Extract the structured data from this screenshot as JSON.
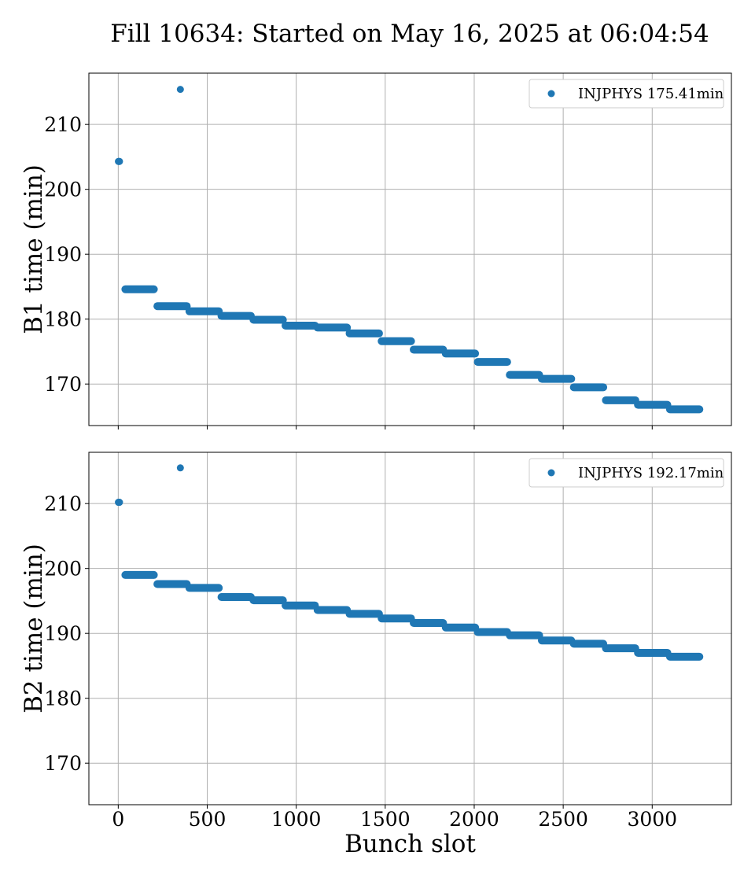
{
  "title": "Fill 10634: Started on May 16, 2025 at 06:04:54",
  "colors": {
    "series": "#1f77b4",
    "grid": "#b0b0b0"
  },
  "chart_data": [
    {
      "type": "scatter",
      "ylabel": "B1 time (min)",
      "xlabel": "",
      "xlim": [
        -165,
        3445
      ],
      "ylim": [
        163.6,
        217.9
      ],
      "xticks": [
        0,
        500,
        1000,
        1500,
        2000,
        2500,
        3000
      ],
      "yticks": [
        170,
        180,
        190,
        200,
        210
      ],
      "show_xticklabels": false,
      "grid": true,
      "legend_position": "top-right",
      "series": [
        {
          "name": "INJPHYS 175.41min",
          "points": [
            [
              1,
              204.3
            ],
            [
              3,
              204.3
            ],
            [
              5,
              204.3
            ],
            [
              7,
              204.3
            ],
            [
              349,
              215.4
            ]
          ],
          "steps": [
            {
              "x0": 40,
              "x1": 200,
              "y": 184.6
            },
            {
              "x0": 220,
              "x1": 385,
              "y": 182.0
            },
            {
              "x0": 400,
              "x1": 565,
              "y": 181.2
            },
            {
              "x0": 580,
              "x1": 745,
              "y": 180.5
            },
            {
              "x0": 760,
              "x1": 925,
              "y": 179.9
            },
            {
              "x0": 940,
              "x1": 1105,
              "y": 179.0
            },
            {
              "x0": 1120,
              "x1": 1285,
              "y": 178.7
            },
            {
              "x0": 1300,
              "x1": 1465,
              "y": 177.8
            },
            {
              "x0": 1480,
              "x1": 1645,
              "y": 176.6
            },
            {
              "x0": 1660,
              "x1": 1825,
              "y": 175.3
            },
            {
              "x0": 1840,
              "x1": 2005,
              "y": 174.7
            },
            {
              "x0": 2020,
              "x1": 2185,
              "y": 173.4
            },
            {
              "x0": 2200,
              "x1": 2365,
              "y": 171.4
            },
            {
              "x0": 2380,
              "x1": 2545,
              "y": 170.8
            },
            {
              "x0": 2560,
              "x1": 2725,
              "y": 169.5
            },
            {
              "x0": 2740,
              "x1": 2905,
              "y": 167.5
            },
            {
              "x0": 2920,
              "x1": 3085,
              "y": 166.8
            },
            {
              "x0": 3100,
              "x1": 3265,
              "y": 166.1
            }
          ]
        }
      ]
    },
    {
      "type": "scatter",
      "ylabel": "B2 time (min)",
      "xlabel": "Bunch slot",
      "xlim": [
        -165,
        3445
      ],
      "ylim": [
        163.6,
        217.9
      ],
      "xticks": [
        0,
        500,
        1000,
        1500,
        2000,
        2500,
        3000
      ],
      "xticklabels": [
        "0",
        "500",
        "1000",
        "1500",
        "2000",
        "2500",
        "3000"
      ],
      "yticks": [
        170,
        180,
        190,
        200,
        210
      ],
      "show_xticklabels": true,
      "grid": true,
      "legend_position": "top-right",
      "series": [
        {
          "name": "INJPHYS 192.17min",
          "points": [
            [
              1,
              210.2
            ],
            [
              3,
              210.2
            ],
            [
              5,
              210.2
            ],
            [
              7,
              210.2
            ],
            [
              349,
              215.5
            ]
          ],
          "steps": [
            {
              "x0": 40,
              "x1": 200,
              "y": 199.0
            },
            {
              "x0": 220,
              "x1": 385,
              "y": 197.6
            },
            {
              "x0": 400,
              "x1": 565,
              "y": 197.0
            },
            {
              "x0": 580,
              "x1": 745,
              "y": 195.6
            },
            {
              "x0": 760,
              "x1": 925,
              "y": 195.1
            },
            {
              "x0": 940,
              "x1": 1105,
              "y": 194.3
            },
            {
              "x0": 1120,
              "x1": 1285,
              "y": 193.6
            },
            {
              "x0": 1300,
              "x1": 1465,
              "y": 193.0
            },
            {
              "x0": 1480,
              "x1": 1645,
              "y": 192.3
            },
            {
              "x0": 1660,
              "x1": 1825,
              "y": 191.6
            },
            {
              "x0": 1840,
              "x1": 2005,
              "y": 190.9
            },
            {
              "x0": 2020,
              "x1": 2185,
              "y": 190.2
            },
            {
              "x0": 2200,
              "x1": 2365,
              "y": 189.7
            },
            {
              "x0": 2380,
              "x1": 2545,
              "y": 188.9
            },
            {
              "x0": 2560,
              "x1": 2725,
              "y": 188.4
            },
            {
              "x0": 2740,
              "x1": 2905,
              "y": 187.7
            },
            {
              "x0": 2920,
              "x1": 3085,
              "y": 187.0
            },
            {
              "x0": 3100,
              "x1": 3265,
              "y": 186.4
            }
          ]
        }
      ]
    }
  ]
}
